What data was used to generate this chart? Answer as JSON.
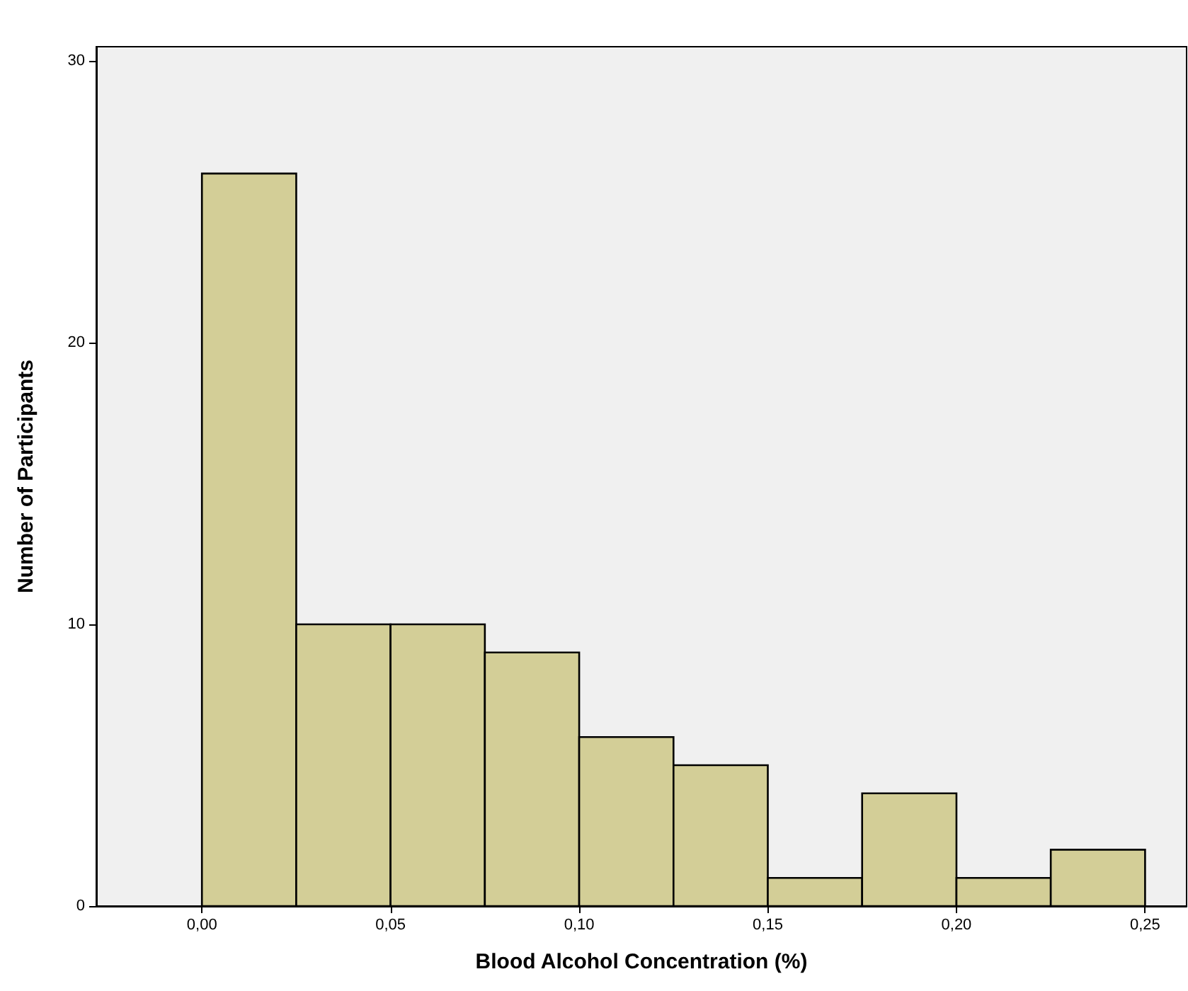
{
  "chart_data": {
    "type": "histogram",
    "xlabel": "Blood Alcohol Concentration (%)",
    "ylabel": "Number of Participants",
    "bins": [
      0,
      0.025,
      0.05,
      0.075,
      0.1,
      0.125,
      0.15,
      0.175,
      0.2,
      0.225,
      0.25
    ],
    "values": [
      26,
      10,
      10,
      9,
      6,
      5,
      1,
      4,
      1,
      2
    ],
    "color": "#d3ce97",
    "xlim": [
      -0.028,
      0.261
    ],
    "ylim": [
      0,
      30.5
    ],
    "xticks": [
      {
        "value": 0,
        "label": "0,00"
      },
      {
        "value": 0.05,
        "label": "0,05"
      },
      {
        "value": 0.1,
        "label": "0,10"
      },
      {
        "value": 0.15,
        "label": "0,15"
      },
      {
        "value": 0.2,
        "label": "0,20"
      },
      {
        "value": 0.25,
        "label": "0,25"
      }
    ],
    "yticks": [
      0,
      10,
      20,
      30
    ]
  }
}
